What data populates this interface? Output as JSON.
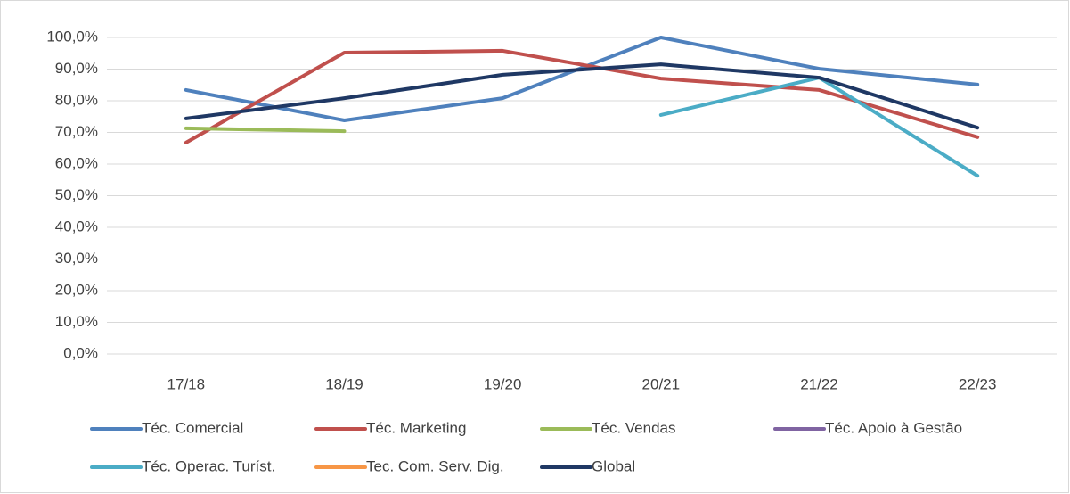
{
  "chart_data": {
    "type": "line",
    "categories": [
      "17/18",
      "18/19",
      "19/20",
      "20/21",
      "21/22",
      "22/23"
    ],
    "series": [
      {
        "name": "Téc. Comercial",
        "color": "#4f81bd",
        "values": [
          83.4,
          73.8,
          80.8,
          100,
          90.1,
          85.1
        ]
      },
      {
        "name": "Téc. Marketing",
        "color": "#c0504d",
        "values": [
          66.8,
          95.2,
          95.8,
          87.0,
          83.4,
          68.5
        ]
      },
      {
        "name": "Téc. Vendas",
        "color": "#9bbb59",
        "values": [
          71.3,
          70.4,
          null,
          null,
          null,
          null
        ]
      },
      {
        "name": "Téc. Apoio à Gestão",
        "color": "#8064a2",
        "values": [
          null,
          null,
          null,
          null,
          null,
          null
        ]
      },
      {
        "name": "Téc. Operac. Turíst.",
        "color": "#4bacc6",
        "values": [
          null,
          null,
          null,
          75.5,
          87.3,
          56.3
        ]
      },
      {
        "name": "Tec. Com. Serv. Dig.",
        "color": "#f79646",
        "values": [
          null,
          null,
          null,
          null,
          null,
          null
        ]
      },
      {
        "name": "Global",
        "color": "#1f3864",
        "values": [
          74.4,
          80.8,
          88.2,
          91.5,
          87.3,
          71.5
        ]
      }
    ],
    "ylim": [
      0,
      100
    ],
    "yticks": [
      {
        "value": 0,
        "label": "0,0%"
      },
      {
        "value": 10,
        "label": "10,0%"
      },
      {
        "value": 20,
        "label": "20,0%"
      },
      {
        "value": 30,
        "label": "30,0%"
      },
      {
        "value": 40,
        "label": "40,0%"
      },
      {
        "value": 50,
        "label": "50,0%"
      },
      {
        "value": 60,
        "label": "60,0%"
      },
      {
        "value": 70,
        "label": "70,0%"
      },
      {
        "value": 80,
        "label": "80,0%"
      },
      {
        "value": 90,
        "label": "90,0%"
      },
      {
        "value": 100,
        "label": "100,0%"
      }
    ],
    "grid": true,
    "legend": "bottom"
  }
}
